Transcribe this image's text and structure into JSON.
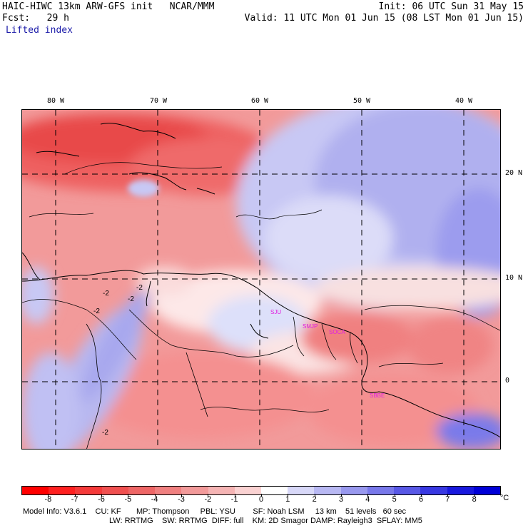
{
  "header": {
    "model": "HAIC-HIWC 13km ARW-GFS init   NCAR/MMM",
    "fcst": "Fcst:   29 h",
    "field": "Lifted index",
    "init": "Init: 06 UTC Sun 31 May 15",
    "valid": "Valid: 11 UTC Mon 01 Jun 15 (08 LST Mon 01 Jun 15)"
  },
  "map": {
    "lon_labels": [
      "80 W",
      "70 W",
      "60 W",
      "50 W",
      "40 W"
    ],
    "lat_labels": [
      "20 N",
      "10 N",
      "0"
    ],
    "contour_labels": [
      "-2",
      "-2",
      "-2",
      "-2",
      "-2"
    ],
    "stations": [
      "SJU",
      "SMJP",
      "SOCA",
      "SBBE"
    ],
    "station_color": "#e020e0"
  },
  "colorbar": {
    "unit": "°C",
    "levels": [
      "-8",
      "-7",
      "-6",
      "-5",
      "-4",
      "-3",
      "-2",
      "-1",
      "0",
      "1",
      "2",
      "3",
      "4",
      "5",
      "6",
      "7",
      "8"
    ],
    "colors": [
      "#ff0000",
      "#ff2020",
      "#f53a3a",
      "#f05050",
      "#ee6666",
      "#f08080",
      "#f29a9a",
      "#f5b4b4",
      "#fad2d2",
      "#ffffff",
      "#d8d8f8",
      "#b8b8f3",
      "#9898ee",
      "#7878ea",
      "#5858e6",
      "#3838e2",
      "#1818de",
      "#0000d8"
    ]
  },
  "footer": {
    "line1": "Model Info: V3.6.1    CU: KF       MP: Thompson     PBL: YSU        SF: Noah LSM     13 km    51 levels   60 sec",
    "line2": "LW: RRTMG    SW: RRTMG  DIFF: full    KM: 2D Smagor DAMP: Rayleigh3  SFLAY: MM5"
  }
}
